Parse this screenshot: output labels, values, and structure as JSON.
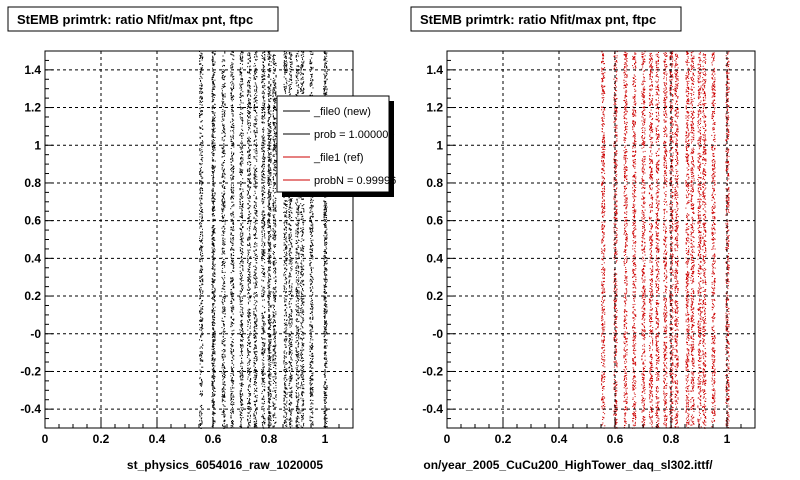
{
  "left_panel": {
    "title": "StEMB primtrk: ratio Nfit/max pnt, ftpc",
    "xlabel": "st_physics_6054016_raw_1020005",
    "legend": [
      {
        "label": "_file0 (new)",
        "color": "#000000"
      },
      {
        "label": "prob = 1.000000",
        "color": "#000000"
      },
      {
        "label": "_file1 (ref)",
        "color": "#cc0000"
      },
      {
        "label": "probN = 0.99996",
        "color": "#cc0000"
      }
    ]
  },
  "right_panel": {
    "title": "StEMB primtrk: ratio Nfit/max pnt, ftpc",
    "xlabel": "on/year_2005_CuCu200_HighTower_daq_sl302.ittf/"
  },
  "chart_data": [
    {
      "type": "scatter",
      "title": "StEMB primtrk: ratio Nfit/max pnt, ftpc",
      "xlabel": "st_physics_6054016_raw_1020005",
      "ylabel": "",
      "xlim": [
        0,
        1.1
      ],
      "ylim": [
        -0.5,
        1.5
      ],
      "x_ticks": [
        "0",
        "0.2",
        "0.4",
        "0.6",
        "0.8",
        "1"
      ],
      "y_ticks": [
        "-0.4",
        "-0.2",
        "-0",
        "0.2",
        "0.4",
        "0.6",
        "0.8",
        "1",
        "1.2",
        "1.4"
      ],
      "grid": true,
      "legend_position": "top-right",
      "series": [
        {
          "color": "#000000",
          "x_bands": [
            0.556,
            0.6,
            0.636,
            0.667,
            0.7,
            0.727,
            0.75,
            0.778,
            0.8,
            0.818,
            0.857,
            0.875,
            0.9,
            0.917,
            0.95,
            1.0
          ]
        }
      ]
    },
    {
      "type": "scatter",
      "title": "StEMB primtrk: ratio Nfit/max pnt, ftpc",
      "xlabel": "on/year_2005_CuCu200_HighTower_daq_sl302.ittf/",
      "ylabel": "",
      "xlim": [
        0,
        1.1
      ],
      "ylim": [
        -0.5,
        1.5
      ],
      "x_ticks": [
        "0",
        "0.2",
        "0.4",
        "0.6",
        "0.8",
        "1"
      ],
      "y_ticks": [
        "-0.4",
        "-0.2",
        "-0",
        "0.2",
        "0.4",
        "0.6",
        "0.8",
        "1",
        "1.2",
        "1.4"
      ],
      "grid": true,
      "series": [
        {
          "color": "#cc0000",
          "x_bands": [
            0.556,
            0.6,
            0.636,
            0.667,
            0.7,
            0.727,
            0.75,
            0.778,
            0.8,
            0.818,
            0.857,
            0.875,
            0.9,
            0.917,
            0.95,
            1.0
          ]
        }
      ]
    }
  ]
}
